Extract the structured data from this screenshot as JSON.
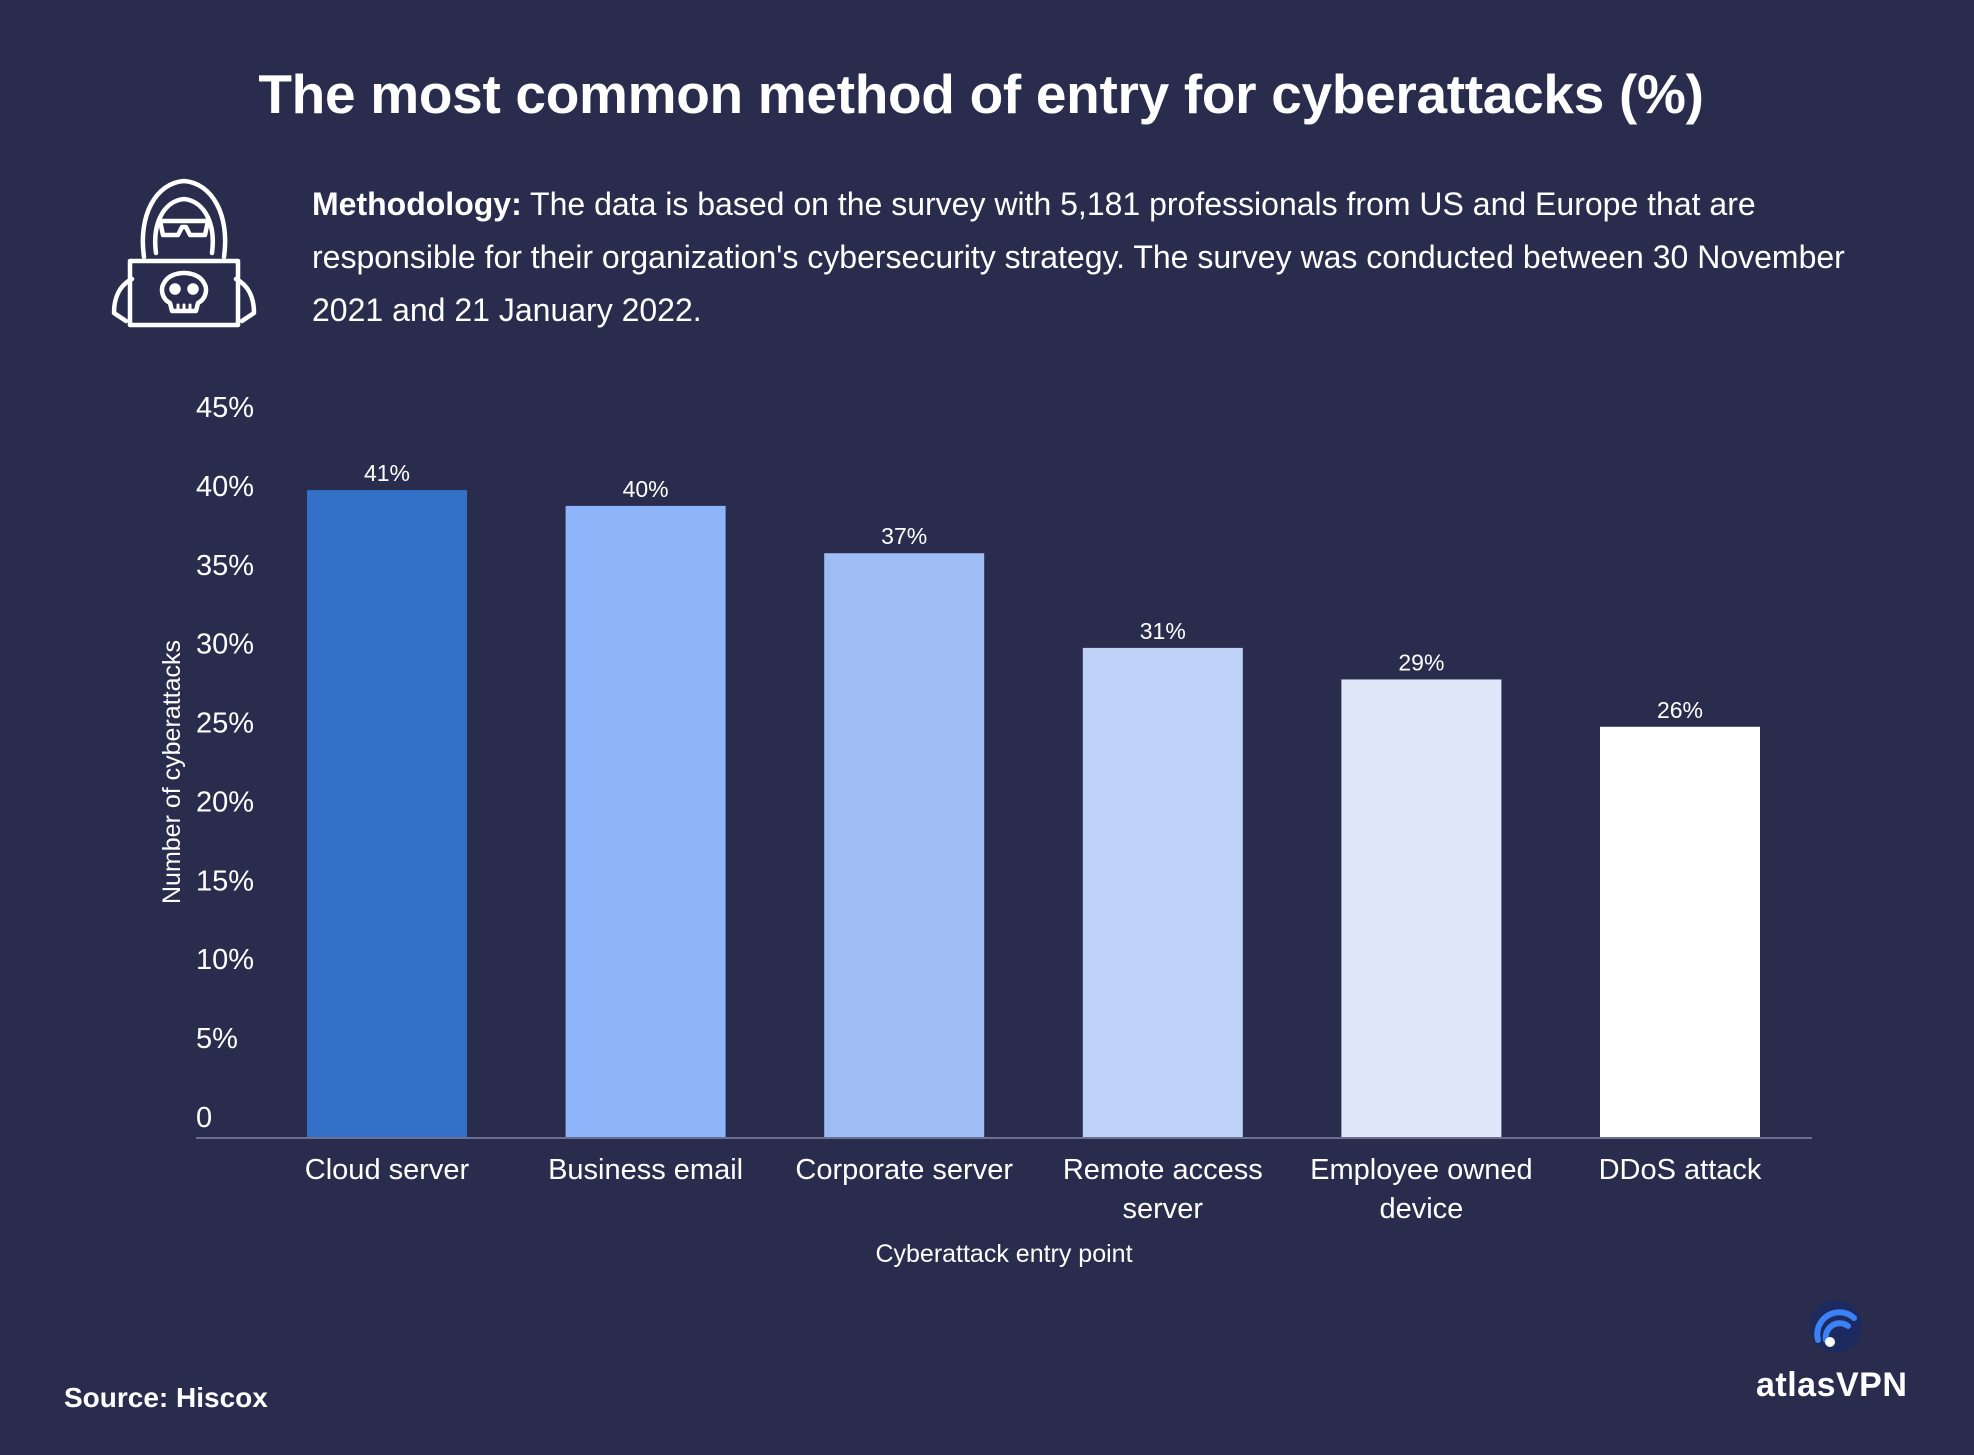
{
  "page": {
    "title": "The most common method of entry for cyberattacks (%)",
    "methodology_label": "Methodology:",
    "methodology_text": "The data is based on the survey with 5,181 professionals from US and Europe that are responsible for their organization's cybersecurity strategy. The survey was conducted between 30 November 2021 and 21 January 2022.",
    "source": "Source: Hiscox",
    "brand": "atlasVPN",
    "icon": "hacker-laptop-skull-icon"
  },
  "chart_data": {
    "type": "bar",
    "title": "The most common method of entry for cyberattacks (%)",
    "xlabel": "Cyberattack entry point",
    "ylabel": "Number of cyberattacks",
    "categories": [
      "Cloud server",
      "Business email",
      "Corporate server",
      "Remote access server",
      "Employee owned device",
      "DDoS attack"
    ],
    "category_lines": [
      [
        "Cloud server"
      ],
      [
        "Business email"
      ],
      [
        "Corporate server"
      ],
      [
        "Remote access",
        "server"
      ],
      [
        "Employee owned",
        "device"
      ],
      [
        "DDoS attack"
      ]
    ],
    "values": [
      41,
      40,
      37,
      31,
      29,
      26
    ],
    "data_labels": [
      "41%",
      "40%",
      "37%",
      "31%",
      "29%",
      "26%"
    ],
    "colors": [
      "#3370c7",
      "#8fb4f9",
      "#9ebdf7",
      "#bfd3f8",
      "#dfe8fb",
      "#ffffff"
    ],
    "ylim": [
      0,
      45
    ],
    "yticks": [
      0,
      5,
      10,
      15,
      20,
      25,
      30,
      35,
      40,
      45
    ],
    "ytick_labels": [
      "0",
      "5%",
      "10%",
      "15%",
      "20%",
      "25%",
      "30%",
      "35%",
      "40%",
      "45%"
    ],
    "grid": false,
    "legend": "none"
  }
}
